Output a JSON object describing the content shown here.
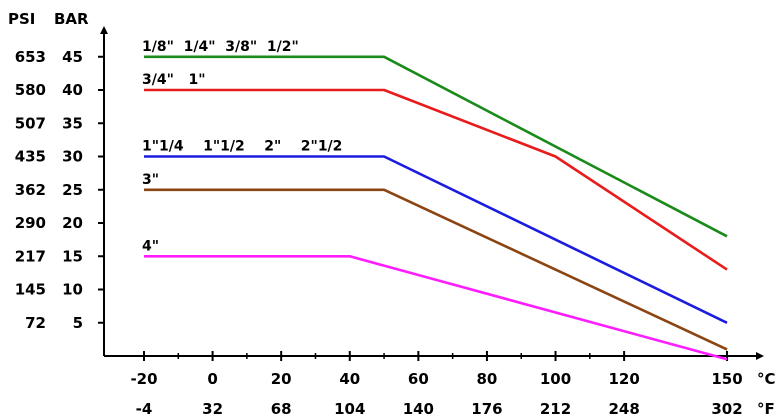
{
  "chart_data": {
    "type": "line",
    "title": "",
    "axes": {
      "y_left_headers": [
        "PSI",
        "BAR"
      ],
      "y_ticks_bar": [
        5,
        10,
        15,
        20,
        25,
        30,
        35,
        40,
        45
      ],
      "y_ticks_psi": [
        "72",
        "145",
        "217",
        "290",
        "362",
        "435",
        "507",
        "580",
        "653"
      ],
      "x_ticks_c": [
        "-20",
        "0",
        "20",
        "40",
        "60",
        "80",
        "100",
        "120",
        "150"
      ],
      "x_ticks_f": [
        "-4",
        "32",
        "68",
        "104",
        "140",
        "176",
        "212",
        "248",
        "302"
      ],
      "x_unit_c": "°C",
      "x_unit_f": "°F",
      "xlim": [
        -20,
        150
      ],
      "ylim": [
        0,
        45
      ]
    },
    "series": [
      {
        "label": "1/8\"  1/4\"  3/8\"  1/2\"",
        "color": "#1a8a1a",
        "points": [
          [
            -20,
            45
          ],
          [
            50,
            45
          ],
          [
            150,
            18
          ]
        ]
      },
      {
        "label": "3/4\"   1\"",
        "color": "#e81c1c",
        "points": [
          [
            -20,
            40
          ],
          [
            50,
            40
          ],
          [
            100,
            30
          ],
          [
            150,
            13
          ]
        ]
      },
      {
        "label": "1\"1/4    1\"1/2    2\"    2\"1/2",
        "color": "#1c1ce0",
        "points": [
          [
            -20,
            30
          ],
          [
            50,
            30
          ],
          [
            150,
            5
          ]
        ]
      },
      {
        "label": "3\"",
        "color": "#8b4513",
        "points": [
          [
            -20,
            25
          ],
          [
            50,
            25
          ],
          [
            150,
            1
          ]
        ]
      },
      {
        "label": "4\"",
        "color": "#ff1cff",
        "points": [
          [
            -20,
            15
          ],
          [
            40,
            15
          ],
          [
            150,
            -0.5
          ]
        ]
      }
    ]
  }
}
